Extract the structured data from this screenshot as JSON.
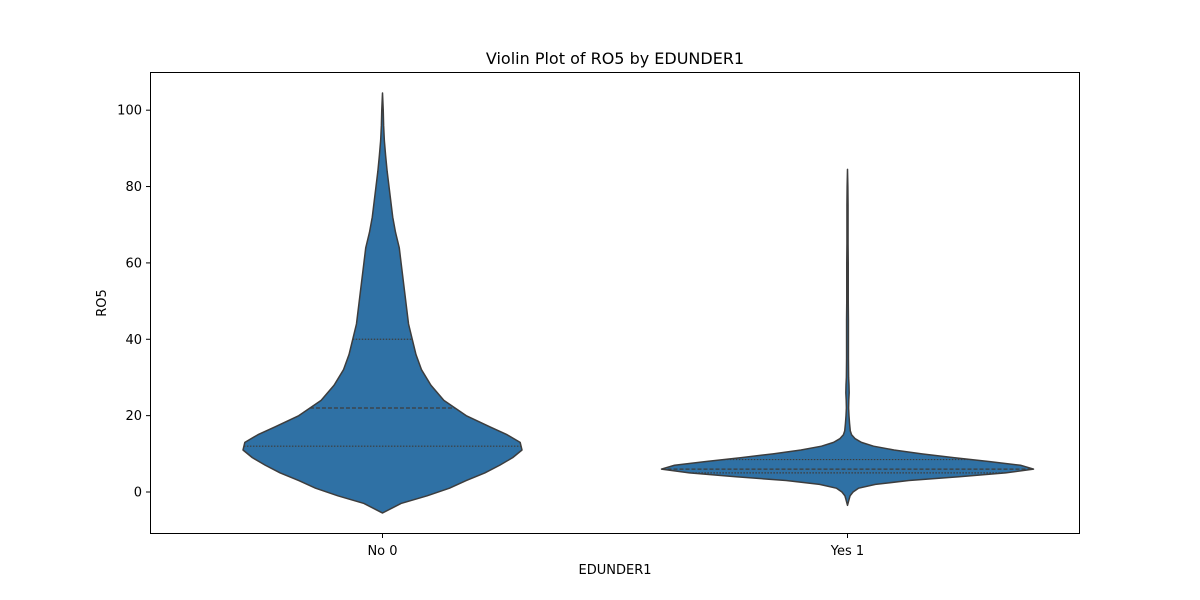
{
  "chart_data": {
    "type": "violin",
    "title": "Violin Plot of RO5 by EDUNDER1",
    "xlabel": "EDUNDER1",
    "ylabel": "RO5",
    "categories": [
      "No 0",
      "Yes 1"
    ],
    "ylim": [
      -11,
      110
    ],
    "yticks": [
      0,
      20,
      40,
      60,
      80,
      100
    ],
    "grid": false,
    "legend": "none",
    "colors": {
      "fill": "#2f71a5",
      "stroke": "#3d3d3d",
      "axis": "#000000"
    },
    "violins": [
      {
        "category": "No 0",
        "quartiles": [
          12,
          22,
          40
        ],
        "range": [
          -5.5,
          104.5
        ],
        "profile": [
          [
            -5.5,
            0
          ],
          [
            -3,
            0.1
          ],
          [
            -1,
            0.24
          ],
          [
            1,
            0.36
          ],
          [
            3,
            0.45
          ],
          [
            5,
            0.55
          ],
          [
            7,
            0.63
          ],
          [
            9,
            0.7
          ],
          [
            11,
            0.75
          ],
          [
            13,
            0.74
          ],
          [
            15,
            0.67
          ],
          [
            17,
            0.58
          ],
          [
            20,
            0.45
          ],
          [
            24,
            0.33
          ],
          [
            28,
            0.26
          ],
          [
            32,
            0.21
          ],
          [
            36,
            0.18
          ],
          [
            40,
            0.16
          ],
          [
            44,
            0.14
          ],
          [
            48,
            0.13
          ],
          [
            52,
            0.12
          ],
          [
            56,
            0.11
          ],
          [
            60,
            0.1
          ],
          [
            64,
            0.09
          ],
          [
            68,
            0.07
          ],
          [
            72,
            0.055
          ],
          [
            76,
            0.045
          ],
          [
            80,
            0.035
          ],
          [
            84,
            0.025
          ],
          [
            88,
            0.017
          ],
          [
            92,
            0.01
          ],
          [
            96,
            0.006
          ],
          [
            100,
            0.004
          ],
          [
            104.5,
            0
          ]
        ]
      },
      {
        "category": "Yes 1",
        "quartiles": [
          5,
          6,
          8.5
        ],
        "range": [
          -3.5,
          84.5
        ],
        "profile": [
          [
            -3.5,
            0
          ],
          [
            -2,
            0.008
          ],
          [
            -1,
            0.014
          ],
          [
            0,
            0.03
          ],
          [
            1,
            0.06
          ],
          [
            2,
            0.15
          ],
          [
            3,
            0.33
          ],
          [
            4,
            0.6
          ],
          [
            5,
            0.85
          ],
          [
            6,
            1.0
          ],
          [
            7,
            0.93
          ],
          [
            8,
            0.76
          ],
          [
            9,
            0.57
          ],
          [
            10,
            0.4
          ],
          [
            11,
            0.25
          ],
          [
            12,
            0.14
          ],
          [
            13,
            0.075
          ],
          [
            14,
            0.04
          ],
          [
            15,
            0.022
          ],
          [
            16,
            0.015
          ],
          [
            18,
            0.011
          ],
          [
            20,
            0.008
          ],
          [
            22,
            0.006
          ],
          [
            24,
            0.007
          ],
          [
            26,
            0.009
          ],
          [
            28,
            0.008
          ],
          [
            30,
            0.006
          ],
          [
            35,
            0.005
          ],
          [
            40,
            0.005
          ],
          [
            45,
            0.005
          ],
          [
            50,
            0.004
          ],
          [
            55,
            0.004
          ],
          [
            60,
            0.004
          ],
          [
            65,
            0.003
          ],
          [
            70,
            0.003
          ],
          [
            75,
            0.003
          ],
          [
            80,
            0.002
          ],
          [
            84.5,
            0
          ]
        ]
      }
    ]
  }
}
